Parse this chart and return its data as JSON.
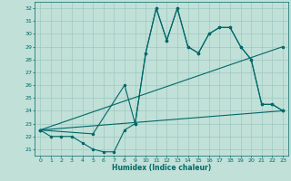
{
  "background_color": "#c0e0d8",
  "grid_color": "#a0c8c0",
  "line_color": "#006868",
  "xlim": [
    -0.5,
    23.5
  ],
  "ylim": [
    20.5,
    32.5
  ],
  "xticks": [
    0,
    1,
    2,
    3,
    4,
    5,
    6,
    7,
    8,
    9,
    10,
    11,
    12,
    13,
    14,
    15,
    16,
    17,
    18,
    19,
    20,
    21,
    22,
    23
  ],
  "yticks": [
    21,
    22,
    23,
    24,
    25,
    26,
    27,
    28,
    29,
    30,
    31,
    32
  ],
  "xlabel": "Humidex (Indice chaleur)",
  "line1_x": [
    0,
    1,
    2,
    3,
    4,
    5,
    6,
    7,
    8,
    9,
    10,
    11,
    12,
    13,
    14,
    15,
    16,
    17,
    18,
    19,
    20,
    21,
    22,
    23
  ],
  "line1_y": [
    22.5,
    22,
    22,
    22,
    21.5,
    21,
    20.8,
    20.8,
    22.5,
    23,
    28.5,
    32,
    29.5,
    32,
    29,
    28.5,
    30,
    30.5,
    30.5,
    29,
    28,
    24.5,
    24.5,
    24
  ],
  "line2_x": [
    0,
    5,
    8,
    9,
    10,
    11,
    12,
    13,
    14,
    15,
    16,
    17,
    18,
    19,
    20,
    21,
    22,
    23
  ],
  "line2_y": [
    22.5,
    22.2,
    26,
    23,
    28.5,
    32,
    29.5,
    32,
    29,
    28.5,
    30,
    30.5,
    30.5,
    29,
    28,
    24.5,
    24.5,
    24
  ],
  "line3_x": [
    0,
    23
  ],
  "line3_y": [
    22.5,
    29
  ],
  "line4_x": [
    0,
    23
  ],
  "line4_y": [
    22.5,
    24
  ],
  "lw": 0.8,
  "ms": 1.5
}
